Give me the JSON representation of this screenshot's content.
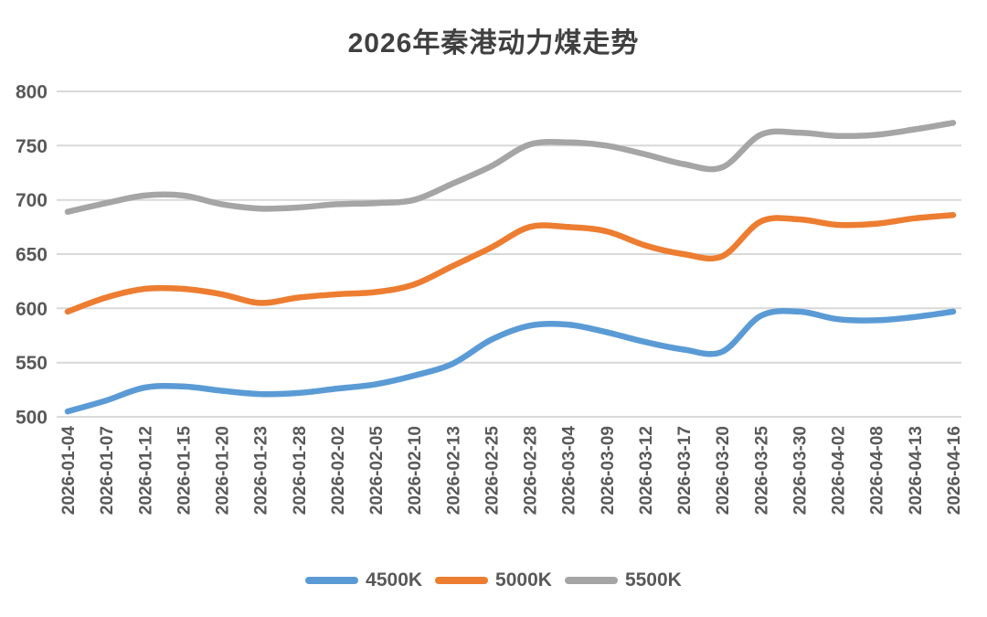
{
  "chart_data": {
    "type": "line",
    "title": "2026年秦港动力煤走势",
    "categories": [
      "2026-01-04",
      "2026-01-07",
      "2026-01-12",
      "2026-01-15",
      "2026-01-20",
      "2026-01-23",
      "2026-01-28",
      "2026-02-02",
      "2026-02-05",
      "2026-02-10",
      "2026-02-13",
      "2026-02-25",
      "2026-02-28",
      "2026-03-04",
      "2026-03-09",
      "2026-03-12",
      "2026-03-17",
      "2026-03-20",
      "2026-03-25",
      "2026-03-30",
      "2026-04-02",
      "2026-04-08",
      "2026-04-13",
      "2026-04-16"
    ],
    "series": [
      {
        "name": "4500K",
        "color": "#5B9BD5",
        "values": [
          505,
          515,
          527,
          528,
          524,
          521,
          522,
          526,
          530,
          538,
          549,
          571,
          584,
          585,
          578,
          569,
          562,
          560,
          593,
          597,
          590,
          589,
          592,
          597
        ]
      },
      {
        "name": "5000K",
        "color": "#ED7D31",
        "values": [
          597,
          610,
          618,
          618,
          613,
          605,
          610,
          613,
          615,
          622,
          639,
          656,
          675,
          675,
          671,
          658,
          650,
          648,
          680,
          682,
          677,
          678,
          683,
          686
        ]
      },
      {
        "name": "5500K",
        "color": "#A5A5A5",
        "values": [
          689,
          697,
          704,
          704,
          696,
          692,
          693,
          696,
          697,
          700,
          715,
          731,
          751,
          753,
          750,
          742,
          733,
          730,
          760,
          762,
          759,
          760,
          765,
          771
        ]
      }
    ],
    "ylim": [
      500,
      800
    ],
    "yticks": [
      500,
      550,
      600,
      650,
      700,
      750,
      800
    ],
    "grid": true,
    "smooth": true,
    "legend_position": "bottom",
    "xlabel": "",
    "ylabel": ""
  },
  "colors": {
    "title": "#404040",
    "axis_label": "#595959",
    "gridline": "#D9D9D9",
    "background": "#FFFFFF"
  }
}
